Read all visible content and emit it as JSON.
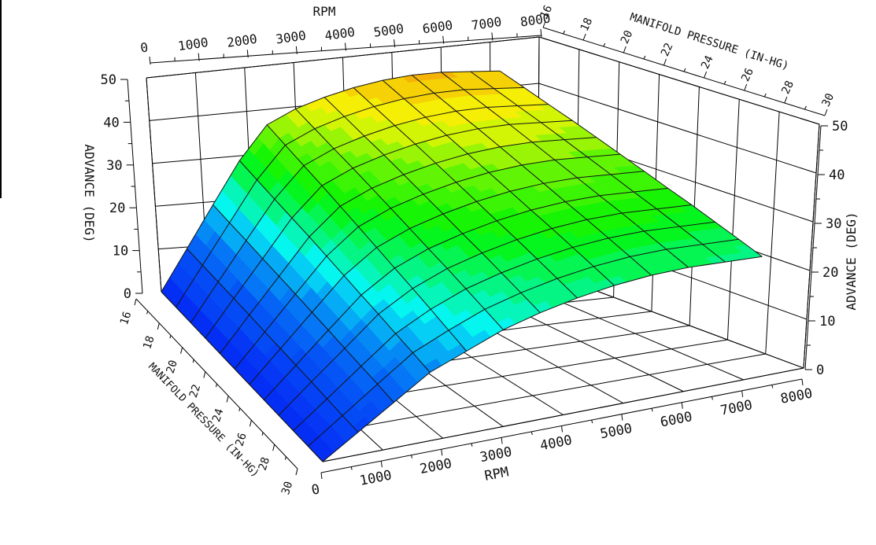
{
  "chart_data": {
    "type": "surface3d",
    "title": "",
    "x_axis": {
      "label": "RPM",
      "min": 0,
      "max": 8000,
      "major_ticks": [
        0,
        1000,
        2000,
        3000,
        4000,
        5000,
        6000,
        7000,
        8000
      ],
      "tick_labels": [
        "0",
        "1000",
        "2000",
        "3000",
        "4000",
        "5000",
        "6000",
        "7000",
        "8000"
      ],
      "minor_step": 500
    },
    "y_axis": {
      "label": "MANIFOLD PRESSURE (IN-HG)",
      "min": 16,
      "max": 30,
      "major_ticks": [
        16,
        18,
        20,
        22,
        24,
        26,
        28,
        30
      ],
      "tick_labels": [
        "16",
        "18",
        "20",
        "22",
        "24",
        "26",
        "28",
        "30"
      ],
      "minor_step": 1
    },
    "z_axis": {
      "label": "ADVANCE (DEG)",
      "min": 0,
      "max": 50,
      "major_ticks": [
        0,
        10,
        20,
        30,
        40,
        50
      ],
      "tick_labels": [
        "0",
        "10",
        "20",
        "30",
        "40",
        "50"
      ],
      "minor_step": 5
    },
    "grid": true,
    "legend": "none",
    "surface": {
      "rpm_nodes": [
        0,
        600,
        1200,
        1800,
        2400,
        3000,
        3600,
        4200,
        4800,
        5400,
        6000,
        6600,
        7200
      ],
      "map_nodes": [
        16,
        17.27,
        18.55,
        19.82,
        21.09,
        22.36,
        23.64,
        24.91,
        26.18,
        27.45,
        28.73,
        30
      ],
      "advance": [
        [
          0,
          9.6,
          19.3,
          28.9,
          36.5,
          39.5,
          41.5,
          43.0,
          44.0,
          44.5,
          44.5,
          44.0,
          43.5
        ],
        [
          0,
          9.2,
          18.4,
          27.6,
          34.8,
          37.8,
          39.8,
          41.3,
          42.3,
          42.8,
          42.8,
          42.3,
          41.8
        ],
        [
          0,
          8.8,
          17.6,
          26.3,
          33.1,
          36.1,
          38.1,
          39.6,
          40.6,
          41.1,
          41.1,
          40.6,
          40.1
        ],
        [
          0,
          8.4,
          16.7,
          25.1,
          31.5,
          34.5,
          36.5,
          38.0,
          39.0,
          39.5,
          39.5,
          39.0,
          38.5
        ],
        [
          0,
          8.0,
          15.9,
          23.9,
          29.8,
          32.8,
          34.8,
          36.3,
          37.3,
          37.8,
          37.8,
          37.3,
          36.8
        ],
        [
          0,
          7.5,
          15.1,
          22.6,
          28.1,
          31.1,
          33.1,
          34.6,
          35.6,
          36.1,
          36.1,
          35.6,
          35.1
        ],
        [
          0,
          7.1,
          14.2,
          21.3,
          26.4,
          29.4,
          31.4,
          32.9,
          33.9,
          34.4,
          34.4,
          33.9,
          33.4
        ],
        [
          0,
          6.7,
          13.4,
          20.0,
          24.7,
          27.7,
          29.7,
          31.2,
          32.2,
          32.7,
          32.7,
          32.2,
          31.7
        ],
        [
          0,
          6.3,
          12.5,
          18.8,
          23.1,
          26.1,
          28.1,
          29.6,
          30.6,
          31.1,
          31.1,
          30.6,
          30.1
        ],
        [
          0,
          5.8,
          11.7,
          17.5,
          21.4,
          24.4,
          26.4,
          27.9,
          28.9,
          29.4,
          29.4,
          28.9,
          28.4
        ],
        [
          0,
          5.4,
          10.9,
          16.3,
          19.7,
          22.7,
          24.7,
          26.2,
          27.2,
          27.7,
          27.7,
          27.2,
          26.7
        ],
        [
          0,
          5.0,
          10.0,
          15.0,
          18.0,
          21.0,
          23.0,
          24.5,
          25.5,
          26.0,
          26.0,
          25.5,
          25.0
        ]
      ]
    },
    "colormap": {
      "space": "hsl",
      "saturation": 96,
      "lightness": 49,
      "band_step": 2,
      "hue_stops": [
        [
          0,
          231
        ],
        [
          10,
          219
        ],
        [
          15,
          207
        ],
        [
          20,
          185
        ],
        [
          25,
          152
        ],
        [
          30,
          120
        ],
        [
          35,
          97
        ],
        [
          40,
          62
        ],
        [
          46,
          40
        ],
        [
          50,
          36
        ]
      ]
    },
    "titles": {
      "top_x": "RPM",
      "bottom_x": "RPM",
      "top_y": "MANIFOLD PRESSURE (IN-HG)",
      "bottom_y": "MANIFOLD PRESSURE (IN-HG)",
      "left_z": "ADVANCE (DEG)",
      "right_z": "ADVANCE (DEG)"
    }
  }
}
